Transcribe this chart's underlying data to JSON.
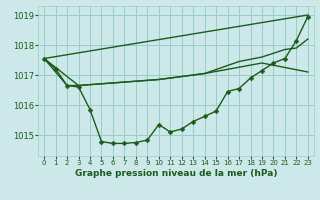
{
  "title": "Graphe pression niveau de la mer (hPa)",
  "xlim": [
    -0.5,
    23.5
  ],
  "ylim": [
    1014.3,
    1019.3
  ],
  "yticks": [
    1015,
    1016,
    1017,
    1018,
    1019
  ],
  "xticks": [
    0,
    1,
    2,
    3,
    4,
    5,
    6,
    7,
    8,
    9,
    10,
    11,
    12,
    13,
    14,
    15,
    16,
    17,
    18,
    19,
    20,
    21,
    22,
    23
  ],
  "bg_color": "#cce8e8",
  "grid_color": "#99cccc",
  "line_color": "#1a5c1a",
  "series1_no_marker": {
    "x": [
      0,
      3,
      10,
      14,
      19,
      23
    ],
    "y": [
      1017.55,
      1016.65,
      1016.85,
      1017.05,
      1017.4,
      1017.1
    ]
  },
  "series2_no_marker": {
    "x": [
      0,
      23
    ],
    "y": [
      1017.55,
      1019.0
    ]
  },
  "series3_no_marker": {
    "x": [
      0,
      2,
      3,
      10,
      14,
      17,
      19,
      21,
      22,
      23
    ],
    "y": [
      1017.55,
      1016.65,
      1016.65,
      1016.85,
      1017.05,
      1017.45,
      1017.6,
      1017.85,
      1017.9,
      1018.2
    ]
  },
  "series4_markers": {
    "x": [
      0,
      1,
      2,
      3,
      4,
      5,
      6,
      7,
      8,
      9,
      10,
      11,
      12,
      13,
      14,
      15,
      16,
      17,
      18,
      19,
      20,
      21,
      22,
      23
    ],
    "y": [
      1017.55,
      1017.2,
      1016.65,
      1016.6,
      1015.85,
      1014.78,
      1014.72,
      1014.72,
      1014.75,
      1014.83,
      1015.35,
      1015.1,
      1015.2,
      1015.45,
      1015.62,
      1015.8,
      1016.45,
      1016.55,
      1016.9,
      1017.15,
      1017.4,
      1017.55,
      1018.15,
      1018.95
    ]
  },
  "linewidth": 1.0,
  "markersize": 2.5
}
